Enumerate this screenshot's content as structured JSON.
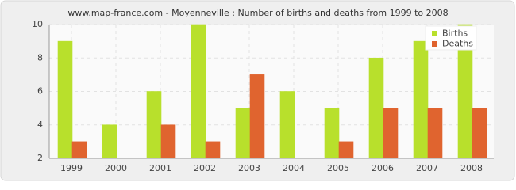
{
  "chart_data": {
    "type": "bar",
    "title": "www.map-france.com - Moyenneville : Number of births and deaths from 1999 to 2008",
    "categories": [
      "1999",
      "2000",
      "2001",
      "2002",
      "2003",
      "2004",
      "2005",
      "2006",
      "2007",
      "2008"
    ],
    "series": [
      {
        "name": "Births",
        "color": "#b8e02c",
        "values": [
          9,
          4,
          6,
          10,
          5,
          6,
          5,
          8,
          9,
          10
        ]
      },
      {
        "name": "Deaths",
        "color": "#e0642f",
        "values": [
          3,
          2,
          4,
          3,
          7,
          2,
          3,
          5,
          5,
          5
        ]
      }
    ],
    "ylim": [
      2,
      10
    ],
    "yticks": [
      2,
      4,
      6,
      8,
      10
    ],
    "grid": true,
    "legend": "top-right"
  }
}
